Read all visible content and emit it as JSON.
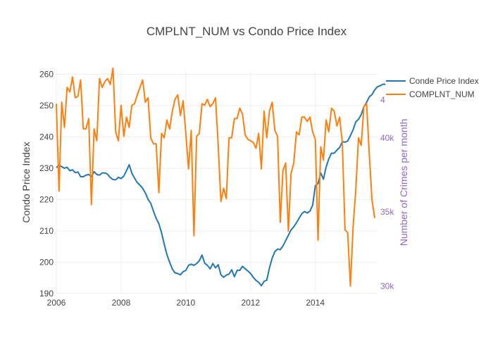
{
  "chart_data": {
    "type": "line",
    "title": "CMPLNT_NUM vs Condo Price Index",
    "xlabel": "",
    "ylabel": "Condo Price Index",
    "y2label": "Number of Crimes per month",
    "xlim": [
      2006.0,
      2015.92
    ],
    "ylim": [
      190,
      261
    ],
    "y2lim": [
      29500,
      44500
    ],
    "x_ticks": [
      2006,
      2008,
      2010,
      2012,
      2014
    ],
    "x_tick_labels": [
      "2006",
      "2008",
      "2010",
      "2012",
      "2014"
    ],
    "y_ticks": [
      190,
      200,
      210,
      220,
      230,
      240,
      250,
      260
    ],
    "y_tick_labels": [
      "190",
      "200",
      "210",
      "220",
      "230",
      "240",
      "250",
      "260"
    ],
    "y2_ticks": [
      30000,
      35000,
      40000
    ],
    "y2_tick_labels": [
      "30k",
      "35k",
      "40k"
    ],
    "y2_clipped_label": "4",
    "grid": true,
    "legend_position": "top-right",
    "colors": {
      "condo": "#1f77b4",
      "crimes": "#ff7f0e",
      "y2axis": "#9467bd"
    },
    "series": [
      {
        "name": "Conde Price Index",
        "axis": "y",
        "x_start": 2006.0,
        "x_step": 0.0833333,
        "values": [
          230.2,
          231.0,
          230.5,
          230.0,
          230.3,
          229.2,
          229.5,
          228.6,
          228.8,
          227.3,
          227.3,
          227.8,
          228.0,
          227.3,
          228.9,
          228.0,
          227.8,
          228.5,
          228.5,
          228.1,
          227.0,
          226.4,
          226.3,
          227.1,
          226.7,
          227.5,
          229.2,
          231.1,
          228.4,
          226.8,
          225.4,
          224.6,
          223.6,
          222.1,
          220.1,
          218.8,
          216.3,
          214.0,
          212.3,
          209.4,
          205.7,
          202.4,
          200.0,
          197.8,
          196.6,
          196.4,
          196.0,
          197.0,
          197.4,
          199.0,
          199.4,
          199.0,
          199.6,
          200.5,
          202.3,
          199.7,
          199.0,
          197.9,
          199.6,
          198.2,
          199.2,
          196.0,
          195.2,
          195.9,
          196.2,
          197.6,
          195.4,
          197.4,
          197.4,
          198.7,
          197.9,
          197.2,
          196.4,
          195.2,
          194.2,
          193.6,
          192.5,
          193.9,
          194.3,
          198.2,
          201.3,
          203.4,
          204.2,
          204.0,
          205.2,
          206.9,
          208.6,
          210.3,
          211.3,
          212.6,
          214.1,
          215.5,
          216.2,
          215.7,
          216.3,
          218.2,
          224.4,
          225.1,
          228.5,
          226.5,
          230.4,
          233.0,
          234.8,
          234.8,
          235.8,
          236.6,
          238.5,
          238.3,
          238.7,
          240.4,
          242.3,
          244.8,
          245.6,
          247.1,
          249.6,
          251.0,
          252.8,
          253.5,
          255.0,
          256.0,
          256.3,
          256.8,
          256.8
        ]
      },
      {
        "name": "COMPLNT_NUM",
        "axis": "y2",
        "x_start": 2006.0,
        "x_step": 0.0833333,
        "values": [
          42300,
          36400,
          42400,
          40700,
          43400,
          43100,
          44100,
          42700,
          42800,
          43900,
          40600,
          40600,
          41300,
          35500,
          40600,
          39800,
          44000,
          43400,
          43800,
          44000,
          43600,
          44700,
          40400,
          39800,
          42200,
          40100,
          41400,
          40700,
          42200,
          42300,
          42900,
          43400,
          43900,
          42400,
          42700,
          40000,
          39600,
          39600,
          36300,
          40300,
          40000,
          41200,
          40600,
          41800,
          42600,
          42900,
          41500,
          42500,
          40300,
          37900,
          40500,
          33400,
          40100,
          40300,
          42300,
          42200,
          42600,
          42100,
          42300,
          42700,
          39500,
          35700,
          36600,
          35900,
          40000,
          40000,
          41300,
          41300,
          42000,
          41600,
          40200,
          39900,
          39800,
          39700,
          39300,
          40300,
          37900,
          41800,
          40000,
          41800,
          42400,
          40500,
          40100,
          34300,
          37800,
          38300,
          33700,
          37600,
          38300,
          40400,
          40200,
          41400,
          41400,
          41100,
          41400,
          40400,
          39900,
          33100,
          39400,
          38500,
          41200,
          40400,
          42000,
          41800,
          40800,
          41400,
          39700,
          33800,
          33600,
          30000,
          34000,
          36500,
          40000,
          39500,
          42100,
          42300,
          38900,
          35800,
          34600
        ]
      }
    ]
  }
}
